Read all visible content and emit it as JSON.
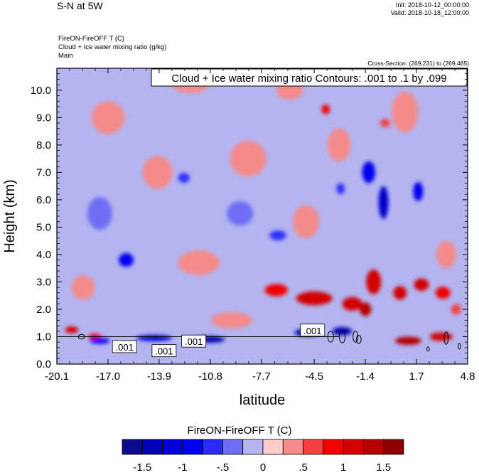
{
  "header": {
    "title": "S-N at 5W",
    "init": "Init: 2018-10-12_00:00:00",
    "valid": "Valid: 2018-10-18_12:00:00",
    "field_line_1": "FireON-FireOFF T   (C)",
    "field_line_2": "Cloud + Ice water mixing ratio   (g/kg)",
    "field_line_3": "Main",
    "cross_section": "Cross-Section: (269,231) to (269,485)"
  },
  "colors": {
    "palette": [
      "#0a0a8c",
      "#0000b4",
      "#0000d2",
      "#0000f0",
      "#2a2aff",
      "#6e6ef5",
      "#b4b4f0",
      "#ffcccc",
      "#f58a8a",
      "#f04040",
      "#f00000",
      "#d20000",
      "#b40000",
      "#8c0000"
    ],
    "background_fill": "#b4b4f0",
    "contour_line": "#000000"
  },
  "chart_data": {
    "type": "heatmap",
    "subtype": "vertical cross-section with filled contours and line contours",
    "xlabel": "latitude",
    "ylabel": "Height (km)",
    "xlim": [
      -20.1,
      4.8
    ],
    "ylim": [
      0.0,
      10.8
    ],
    "xticks": [
      -20.1,
      -17.0,
      -13.9,
      -10.8,
      -7.7,
      -4.5,
      -1.4,
      1.7,
      4.8
    ],
    "xtick_labels": [
      "-20.1",
      "-17.0",
      "-13.9",
      "-10.8",
      "-7.7",
      "-4.5",
      "-1.4",
      "1.7",
      "4.8"
    ],
    "yticks": [
      0.0,
      1.0,
      2.0,
      3.0,
      4.0,
      5.0,
      6.0,
      7.0,
      8.0,
      9.0,
      10.0
    ],
    "ytick_labels": [
      "0.0",
      "1.0",
      "2.0",
      "3.0",
      "4.0",
      "5.0",
      "6.0",
      "7.0",
      "8.0",
      "9.0",
      "10.0"
    ],
    "contour_legend": "Cloud + Ice water mixing ratio Contours: .001 to .1 by .099",
    "contour_labels": [
      {
        "text": ".001",
        "lat": -16.0,
        "height_km": 0.6
      },
      {
        "text": ".001",
        "lat": -13.6,
        "height_km": 0.45
      },
      {
        "text": ".001",
        "lat": -11.8,
        "height_km": 0.8
      },
      {
        "text": ".001",
        "lat": -4.6,
        "height_km": 1.2
      }
    ],
    "contour_levels": [
      0.001,
      0.1
    ],
    "colorbar": {
      "title": "FireON-FireOFF T  (C)",
      "levels": [
        -1.5,
        -1.25,
        -1.0,
        -0.75,
        -0.5,
        -0.25,
        0.0,
        0.25,
        0.5,
        0.75,
        1.0,
        1.25,
        1.5
      ],
      "labels": [
        {
          "text": "-1.5",
          "value": -1.5
        },
        {
          "text": "-1",
          "value": -1.0
        },
        {
          "text": "-.5",
          "value": -0.5
        },
        {
          "text": "0",
          "value": 0.0
        },
        {
          "text": ".5",
          "value": 0.5
        },
        {
          "text": "1",
          "value": 1.0
        },
        {
          "text": "1.5",
          "value": 1.5
        }
      ]
    },
    "features": [
      {
        "kind": "warm",
        "lat": -4.5,
        "height_km": 2.4,
        "width": 2.2,
        "depth": 0.5,
        "value": 1.2
      },
      {
        "kind": "warm",
        "lat": -6.8,
        "height_km": 2.7,
        "width": 1.4,
        "depth": 0.45,
        "value": 0.75
      },
      {
        "kind": "warm",
        "lat": -2.2,
        "height_km": 2.2,
        "width": 1.2,
        "depth": 0.5,
        "value": 1.0
      },
      {
        "kind": "warm",
        "lat": -0.9,
        "height_km": 3.0,
        "width": 0.9,
        "depth": 0.9,
        "value": 1.1
      },
      {
        "kind": "warm",
        "lat": -1.4,
        "height_km": 2.0,
        "width": 0.7,
        "depth": 0.5,
        "value": 1.3
      },
      {
        "kind": "warm",
        "lat": 0.7,
        "height_km": 2.6,
        "width": 0.8,
        "depth": 0.5,
        "value": 1.2
      },
      {
        "kind": "warm",
        "lat": 2.0,
        "height_km": 2.9,
        "width": 0.9,
        "depth": 0.45,
        "value": 1.0
      },
      {
        "kind": "warm",
        "lat": 3.3,
        "height_km": 2.6,
        "width": 0.9,
        "depth": 0.45,
        "value": 0.9
      },
      {
        "kind": "warm",
        "lat": 1.2,
        "height_km": 0.85,
        "width": 1.6,
        "depth": 0.3,
        "value": 1.4
      },
      {
        "kind": "warm",
        "lat": 3.2,
        "height_km": 1.0,
        "width": 1.4,
        "depth": 0.3,
        "value": 1.0
      },
      {
        "kind": "warm",
        "lat": -19.2,
        "height_km": 1.25,
        "width": 0.8,
        "depth": 0.25,
        "value": 1.1
      },
      {
        "kind": "warm",
        "lat": -17.8,
        "height_km": 1.0,
        "width": 0.8,
        "depth": 0.22,
        "value": 0.9
      },
      {
        "kind": "warm",
        "lat": -3.8,
        "height_km": 9.3,
        "width": 0.5,
        "depth": 0.35,
        "value": 0.85
      },
      {
        "kind": "warm",
        "lat": -0.2,
        "height_km": 8.8,
        "width": 0.6,
        "depth": 0.3,
        "value": 0.7
      },
      {
        "kind": "warm",
        "lat": 4.1,
        "height_km": 2.0,
        "width": 0.6,
        "depth": 0.4,
        "value": 0.7
      },
      {
        "kind": "cold",
        "lat": -0.3,
        "height_km": 5.9,
        "width": 0.6,
        "depth": 1.2,
        "value": -1.1
      },
      {
        "kind": "cold",
        "lat": -1.2,
        "height_km": 7.0,
        "width": 0.8,
        "depth": 0.8,
        "value": -0.8
      },
      {
        "kind": "cold",
        "lat": 1.8,
        "height_km": 6.3,
        "width": 0.6,
        "depth": 0.7,
        "value": -0.8
      },
      {
        "kind": "cold",
        "lat": -15.9,
        "height_km": 3.8,
        "width": 0.9,
        "depth": 0.5,
        "value": -0.85
      },
      {
        "kind": "cold",
        "lat": -10.8,
        "height_km": 0.9,
        "width": 1.8,
        "depth": 0.24,
        "value": -1.4
      },
      {
        "kind": "cold",
        "lat": -14.2,
        "height_km": 0.95,
        "width": 2.2,
        "depth": 0.22,
        "value": -1.1
      },
      {
        "kind": "cold",
        "lat": -17.5,
        "height_km": 0.85,
        "width": 1.2,
        "depth": 0.22,
        "value": -0.9
      },
      {
        "kind": "cold",
        "lat": -4.9,
        "height_km": 1.15,
        "width": 1.6,
        "depth": 0.28,
        "value": -1.3
      },
      {
        "kind": "cold",
        "lat": -2.8,
        "height_km": 1.2,
        "width": 1.2,
        "depth": 0.3,
        "value": -1.4
      },
      {
        "kind": "cold",
        "lat": -12.4,
        "height_km": 6.8,
        "width": 0.7,
        "depth": 0.35,
        "value": -0.7
      },
      {
        "kind": "cold",
        "lat": -6.7,
        "height_km": 4.7,
        "width": 1.0,
        "depth": 0.35,
        "value": -0.6
      },
      {
        "kind": "cold",
        "lat": -2.9,
        "height_km": 6.4,
        "width": 0.5,
        "depth": 0.4,
        "value": -0.7
      },
      {
        "kind": "warm",
        "lat": -11.5,
        "height_km": 3.7,
        "width": 2.5,
        "depth": 0.9,
        "value": 0.3
      },
      {
        "kind": "warm",
        "lat": -8.5,
        "height_km": 7.5,
        "width": 2.2,
        "depth": 1.3,
        "value": 0.3
      },
      {
        "kind": "warm",
        "lat": -17.0,
        "height_km": 9.0,
        "width": 2.0,
        "depth": 1.2,
        "value": 0.3
      },
      {
        "kind": "warm",
        "lat": -5.0,
        "height_km": 5.2,
        "width": 1.6,
        "depth": 1.2,
        "value": 0.3
      },
      {
        "kind": "warm",
        "lat": -14.0,
        "height_km": 7.0,
        "width": 1.8,
        "depth": 1.2,
        "value": 0.3
      },
      {
        "kind": "warm",
        "lat": -18.5,
        "height_km": 2.8,
        "width": 1.4,
        "depth": 0.9,
        "value": 0.3
      },
      {
        "kind": "warm",
        "lat": -9.5,
        "height_km": 1.6,
        "width": 2.5,
        "depth": 0.6,
        "value": 0.3
      },
      {
        "kind": "warm",
        "lat": 1.0,
        "height_km": 9.2,
        "width": 1.6,
        "depth": 1.5,
        "value": 0.3
      },
      {
        "kind": "warm",
        "lat": -3.0,
        "height_km": 8.0,
        "width": 1.4,
        "depth": 1.2,
        "value": 0.3
      },
      {
        "kind": "warm",
        "lat": 3.5,
        "height_km": 4.0,
        "width": 1.2,
        "depth": 1.0,
        "value": 0.3
      },
      {
        "kind": "warm",
        "lat": -12.0,
        "height_km": 10.2,
        "width": 2.2,
        "depth": 0.6,
        "value": 0.3
      },
      {
        "kind": "warm",
        "lat": -6.0,
        "height_km": 10.0,
        "width": 1.6,
        "depth": 0.7,
        "value": 0.3
      },
      {
        "kind": "cold",
        "lat": -17.5,
        "height_km": 5.5,
        "width": 1.5,
        "depth": 1.2,
        "value": -0.3
      },
      {
        "kind": "cold",
        "lat": -9.0,
        "height_km": 5.5,
        "width": 1.6,
        "depth": 0.9,
        "value": -0.3
      }
    ],
    "cloud_contours": [
      {
        "lat": -16.0,
        "height_km": 0.65,
        "width": 0.9,
        "depth": 0.2
      },
      {
        "lat": -13.6,
        "height_km": 0.55,
        "width": 0.7,
        "depth": 0.18
      },
      {
        "lat": -11.8,
        "height_km": 0.85,
        "width": 0.8,
        "depth": 0.2
      },
      {
        "lat": -18.6,
        "height_km": 1.0,
        "width": 0.4,
        "depth": 0.17
      },
      {
        "lat": -2.8,
        "height_km": 1.0,
        "width": 0.35,
        "depth": 0.45
      },
      {
        "lat": -3.5,
        "height_km": 1.0,
        "width": 0.35,
        "depth": 0.4
      },
      {
        "lat": -2.0,
        "height_km": 1.0,
        "width": 0.3,
        "depth": 0.4
      },
      {
        "lat": -1.8,
        "height_km": 0.9,
        "width": 0.3,
        "depth": 0.3
      },
      {
        "lat": 3.5,
        "height_km": 0.95,
        "width": 0.25,
        "depth": 0.45
      },
      {
        "lat": 4.3,
        "height_km": 0.65,
        "width": 0.15,
        "depth": 0.2
      },
      {
        "lat": 2.4,
        "height_km": 0.55,
        "width": 0.15,
        "depth": 0.15
      }
    ]
  }
}
